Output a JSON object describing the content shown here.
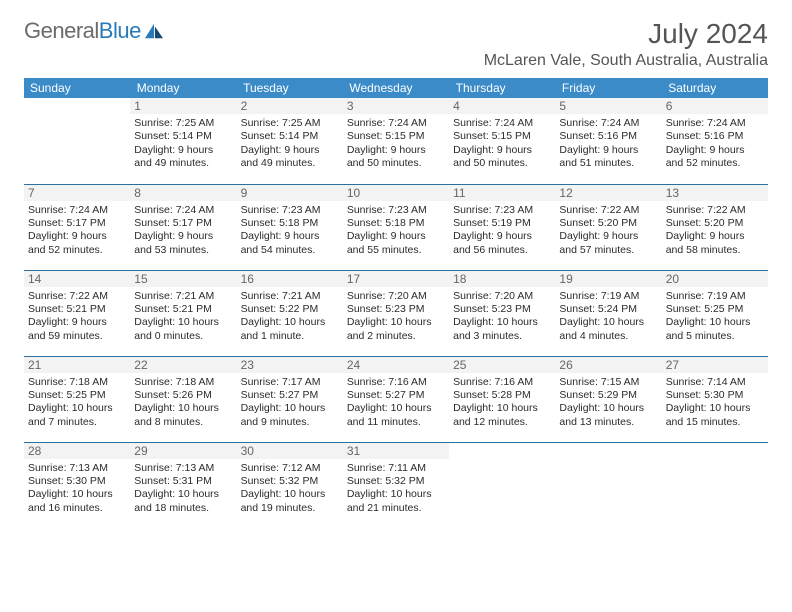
{
  "logo": {
    "word1": "General",
    "word2": "Blue"
  },
  "title": "July 2024",
  "subtitle": "McLaren Vale, South Australia, Australia",
  "colors": {
    "header_bg": "#3b8bc9",
    "header_text": "#ffffff",
    "daynum_bg": "#f3f3f3",
    "daynum_text": "#666666",
    "border": "#2a6fa3",
    "body_text": "#2b2b2b",
    "title_text": "#555555",
    "logo_gray": "#6b6b6b",
    "logo_blue": "#2a7ab8"
  },
  "weekdays": [
    "Sunday",
    "Monday",
    "Tuesday",
    "Wednesday",
    "Thursday",
    "Friday",
    "Saturday"
  ],
  "weeks": [
    [
      {
        "n": "",
        "empty": true
      },
      {
        "n": "1",
        "sr": "7:25 AM",
        "ss": "5:14 PM",
        "d1": "9 hours",
        "d2": "and 49 minutes."
      },
      {
        "n": "2",
        "sr": "7:25 AM",
        "ss": "5:14 PM",
        "d1": "9 hours",
        "d2": "and 49 minutes."
      },
      {
        "n": "3",
        "sr": "7:24 AM",
        "ss": "5:15 PM",
        "d1": "9 hours",
        "d2": "and 50 minutes."
      },
      {
        "n": "4",
        "sr": "7:24 AM",
        "ss": "5:15 PM",
        "d1": "9 hours",
        "d2": "and 50 minutes."
      },
      {
        "n": "5",
        "sr": "7:24 AM",
        "ss": "5:16 PM",
        "d1": "9 hours",
        "d2": "and 51 minutes."
      },
      {
        "n": "6",
        "sr": "7:24 AM",
        "ss": "5:16 PM",
        "d1": "9 hours",
        "d2": "and 52 minutes."
      }
    ],
    [
      {
        "n": "7",
        "sr": "7:24 AM",
        "ss": "5:17 PM",
        "d1": "9 hours",
        "d2": "and 52 minutes."
      },
      {
        "n": "8",
        "sr": "7:24 AM",
        "ss": "5:17 PM",
        "d1": "9 hours",
        "d2": "and 53 minutes."
      },
      {
        "n": "9",
        "sr": "7:23 AM",
        "ss": "5:18 PM",
        "d1": "9 hours",
        "d2": "and 54 minutes."
      },
      {
        "n": "10",
        "sr": "7:23 AM",
        "ss": "5:18 PM",
        "d1": "9 hours",
        "d2": "and 55 minutes."
      },
      {
        "n": "11",
        "sr": "7:23 AM",
        "ss": "5:19 PM",
        "d1": "9 hours",
        "d2": "and 56 minutes."
      },
      {
        "n": "12",
        "sr": "7:22 AM",
        "ss": "5:20 PM",
        "d1": "9 hours",
        "d2": "and 57 minutes."
      },
      {
        "n": "13",
        "sr": "7:22 AM",
        "ss": "5:20 PM",
        "d1": "9 hours",
        "d2": "and 58 minutes."
      }
    ],
    [
      {
        "n": "14",
        "sr": "7:22 AM",
        "ss": "5:21 PM",
        "d1": "9 hours",
        "d2": "and 59 minutes."
      },
      {
        "n": "15",
        "sr": "7:21 AM",
        "ss": "5:21 PM",
        "d1": "10 hours",
        "d2": "and 0 minutes."
      },
      {
        "n": "16",
        "sr": "7:21 AM",
        "ss": "5:22 PM",
        "d1": "10 hours",
        "d2": "and 1 minute."
      },
      {
        "n": "17",
        "sr": "7:20 AM",
        "ss": "5:23 PM",
        "d1": "10 hours",
        "d2": "and 2 minutes."
      },
      {
        "n": "18",
        "sr": "7:20 AM",
        "ss": "5:23 PM",
        "d1": "10 hours",
        "d2": "and 3 minutes."
      },
      {
        "n": "19",
        "sr": "7:19 AM",
        "ss": "5:24 PM",
        "d1": "10 hours",
        "d2": "and 4 minutes."
      },
      {
        "n": "20",
        "sr": "7:19 AM",
        "ss": "5:25 PM",
        "d1": "10 hours",
        "d2": "and 5 minutes."
      }
    ],
    [
      {
        "n": "21",
        "sr": "7:18 AM",
        "ss": "5:25 PM",
        "d1": "10 hours",
        "d2": "and 7 minutes."
      },
      {
        "n": "22",
        "sr": "7:18 AM",
        "ss": "5:26 PM",
        "d1": "10 hours",
        "d2": "and 8 minutes."
      },
      {
        "n": "23",
        "sr": "7:17 AM",
        "ss": "5:27 PM",
        "d1": "10 hours",
        "d2": "and 9 minutes."
      },
      {
        "n": "24",
        "sr": "7:16 AM",
        "ss": "5:27 PM",
        "d1": "10 hours",
        "d2": "and 11 minutes."
      },
      {
        "n": "25",
        "sr": "7:16 AM",
        "ss": "5:28 PM",
        "d1": "10 hours",
        "d2": "and 12 minutes."
      },
      {
        "n": "26",
        "sr": "7:15 AM",
        "ss": "5:29 PM",
        "d1": "10 hours",
        "d2": "and 13 minutes."
      },
      {
        "n": "27",
        "sr": "7:14 AM",
        "ss": "5:30 PM",
        "d1": "10 hours",
        "d2": "and 15 minutes."
      }
    ],
    [
      {
        "n": "28",
        "sr": "7:13 AM",
        "ss": "5:30 PM",
        "d1": "10 hours",
        "d2": "and 16 minutes."
      },
      {
        "n": "29",
        "sr": "7:13 AM",
        "ss": "5:31 PM",
        "d1": "10 hours",
        "d2": "and 18 minutes."
      },
      {
        "n": "30",
        "sr": "7:12 AM",
        "ss": "5:32 PM",
        "d1": "10 hours",
        "d2": "and 19 minutes."
      },
      {
        "n": "31",
        "sr": "7:11 AM",
        "ss": "5:32 PM",
        "d1": "10 hours",
        "d2": "and 21 minutes."
      },
      {
        "n": "",
        "empty": true
      },
      {
        "n": "",
        "empty": true
      },
      {
        "n": "",
        "empty": true
      }
    ]
  ],
  "labels": {
    "sunrise": "Sunrise:",
    "sunset": "Sunset:",
    "daylight": "Daylight:"
  }
}
